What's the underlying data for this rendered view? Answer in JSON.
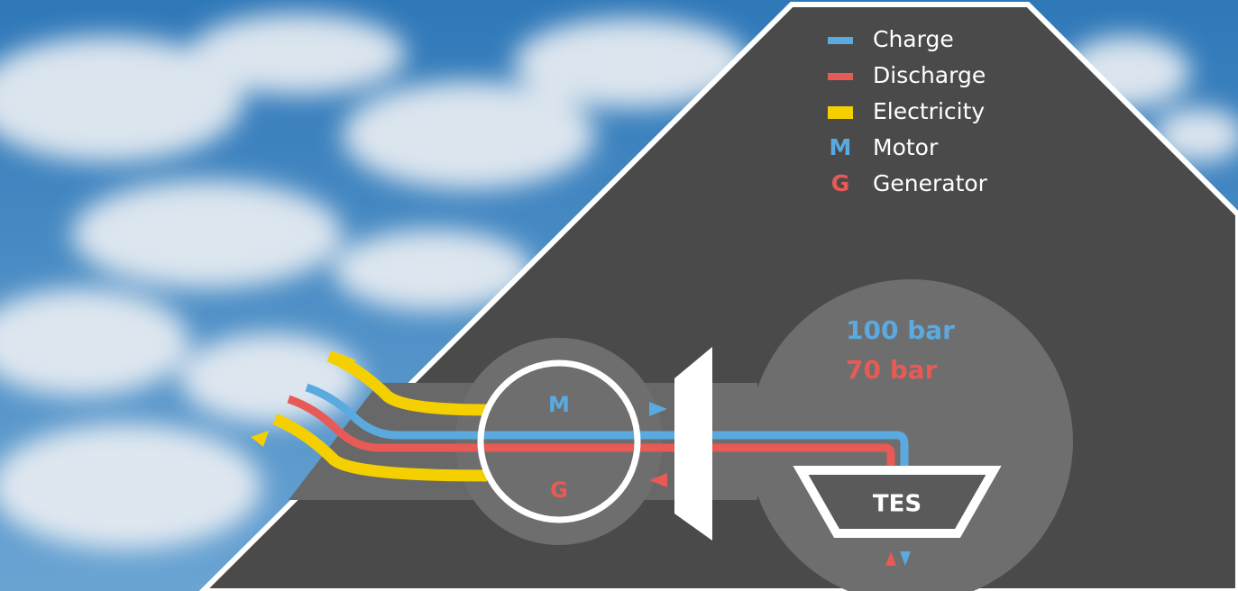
{
  "legend": {
    "items": [
      {
        "label": "Charge"
      },
      {
        "label": "Discharge"
      },
      {
        "label": "Electricity"
      },
      {
        "symbol": "M",
        "label": "Motor"
      },
      {
        "symbol": "G",
        "label": "Generator"
      }
    ]
  },
  "diagram": {
    "motor_label": "M",
    "generator_label": "G",
    "pressure_high": "100 bar",
    "pressure_low": "70 bar",
    "storage_label": "TES"
  }
}
